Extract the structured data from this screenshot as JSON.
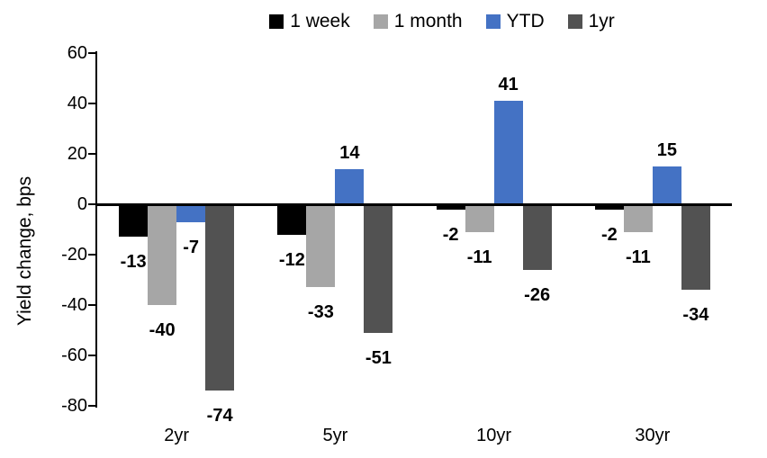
{
  "chart_data": {
    "type": "bar",
    "title": "",
    "ylabel": "Yield change, bps",
    "categories": [
      "2yr",
      "5yr",
      "10yr",
      "30yr"
    ],
    "series": [
      {
        "name": "1 week",
        "color": "#000000",
        "values": [
          -13,
          -12,
          -2,
          -2
        ]
      },
      {
        "name": "1 month",
        "color": "#a6a6a6",
        "values": [
          -40,
          -33,
          -11,
          -11
        ]
      },
      {
        "name": "YTD",
        "color": "#4472c4",
        "values": [
          -7,
          14,
          41,
          15
        ]
      },
      {
        "name": "1yr",
        "color": "#525252",
        "values": [
          -74,
          -51,
          -26,
          -34
        ]
      }
    ],
    "ylim": [
      -80,
      60
    ],
    "ytick_step": 20,
    "yticks": [
      60,
      40,
      20,
      0,
      -20,
      -40,
      -60,
      -80
    ],
    "legend_position": "top",
    "grid": false,
    "axis_color": "#000000",
    "value_label_color": "#000000"
  }
}
